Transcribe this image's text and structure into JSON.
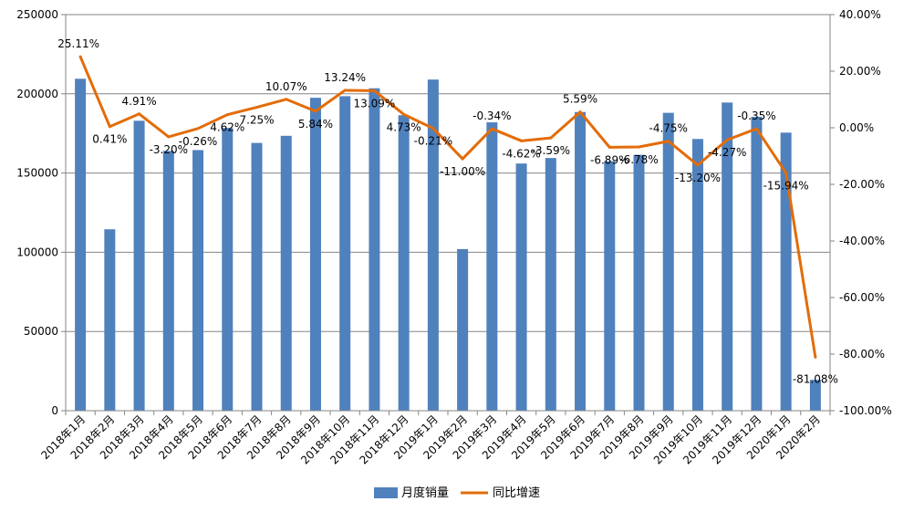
{
  "chart_data": {
    "type": "bar",
    "title": "",
    "xlabel": "",
    "ylabel": "",
    "categories": [
      "2018年1月",
      "2018年2月",
      "2018年3月",
      "2018年4月",
      "2018年5月",
      "2018年6月",
      "2018年7月",
      "2018年8月",
      "2018年9月",
      "2018年10月",
      "2018年11月",
      "2018年12月",
      "2019年1月",
      "2019年2月",
      "2019年3月",
      "2019年4月",
      "2019年5月",
      "2019年6月",
      "2019年7月",
      "2019年8月",
      "2019年9月",
      "2019年10月",
      "2019年11月",
      "2019年12月",
      "2020年1月",
      "2020年2月"
    ],
    "series": [
      {
        "name": "月度销量",
        "type": "bar",
        "axis": "left",
        "color": "#4F81BD",
        "values": [
          209500,
          114500,
          183000,
          164000,
          164500,
          178500,
          169000,
          173500,
          197500,
          198500,
          203500,
          186500,
          209000,
          102000,
          182000,
          156000,
          159500,
          188500,
          157500,
          161500,
          188000,
          171500,
          194500,
          185500,
          175500,
          19500
        ]
      },
      {
        "name": "同比增速",
        "type": "line",
        "axis": "right",
        "color": "#E36C09",
        "values": [
          25.11,
          0.41,
          4.91,
          -3.2,
          -0.26,
          4.62,
          7.25,
          10.07,
          5.84,
          13.24,
          13.09,
          4.73,
          -0.21,
          -11.0,
          -0.34,
          -4.62,
          -3.59,
          5.59,
          -6.89,
          -6.78,
          -4.75,
          -13.2,
          -4.27,
          -0.35,
          -15.94,
          -81.08
        ],
        "labels": [
          "25.11%",
          "0.41%",
          "4.91%",
          "-3.20%",
          "-0.26%",
          "4.62%",
          "7.25%",
          "10.07%",
          "5.84%",
          "13.24%",
          "13.09%",
          "4.73%",
          "-0.21%",
          "-11.00%",
          "-0.34%",
          "-4.62%",
          "-3.59%",
          "5.59%",
          "-6.89%",
          "-6.78%",
          "-4.75%",
          "-13.20%",
          "-4.27%",
          "-0.35%",
          "-15.94%",
          "-81.08%"
        ]
      }
    ],
    "y_left": {
      "min": 0,
      "max": 250000,
      "ticks": [
        0,
        50000,
        100000,
        150000,
        200000,
        250000
      ],
      "tick_labels": [
        "0",
        "50000",
        "100000",
        "150000",
        "200000",
        "250000"
      ]
    },
    "y_right": {
      "min": -100,
      "max": 40,
      "ticks": [
        -100,
        -80,
        -60,
        -40,
        -20,
        0,
        20,
        40
      ],
      "tick_labels": [
        "-100.00%",
        "-80.00%",
        "-60.00%",
        "-40.00%",
        "-20.00%",
        "0.00%",
        "20.00%",
        "40.00%"
      ]
    },
    "grid": true,
    "legend_position": "bottom-center"
  }
}
